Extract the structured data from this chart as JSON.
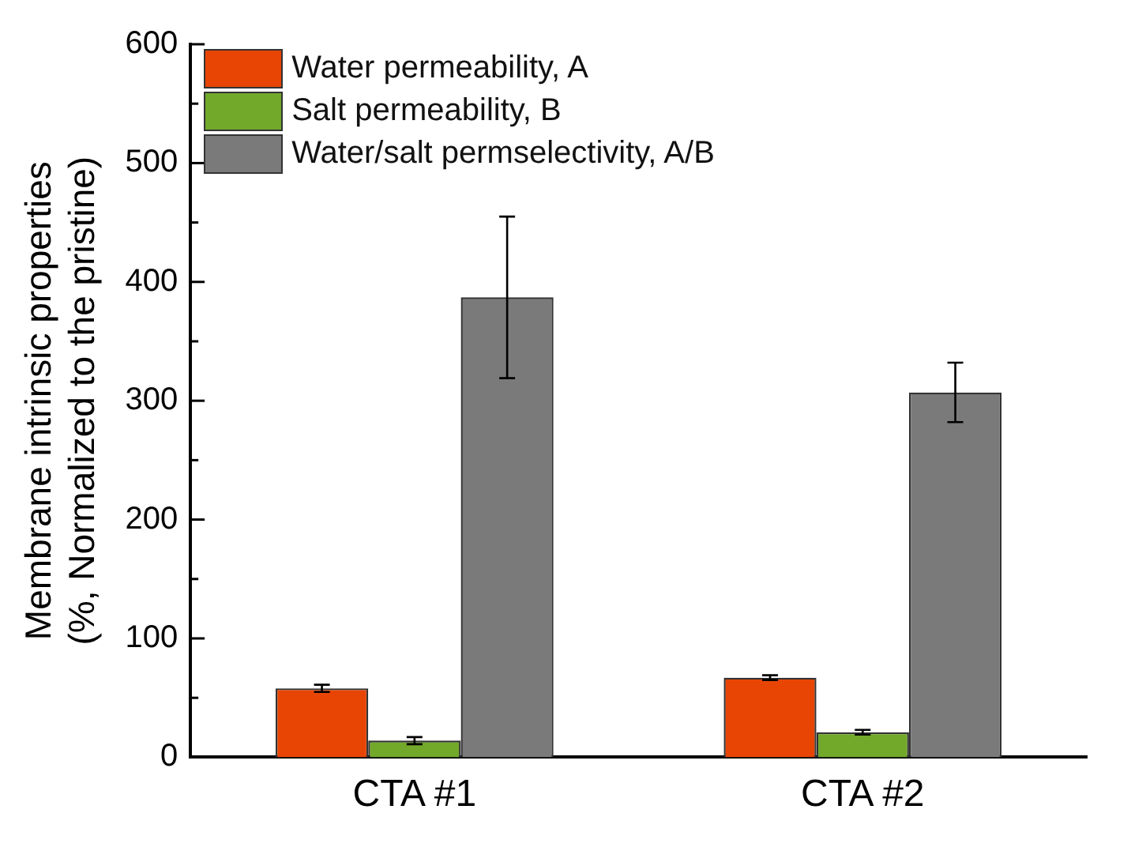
{
  "chart_data": {
    "type": "bar",
    "ylabel": "Membrane intrinsic properties\n(%, Normalized to the pristine)",
    "categories": [
      "CTA #1",
      "CTA #2"
    ],
    "series": [
      {
        "name": "Water permeability, A",
        "color": "#e84505",
        "values": [
          58,
          67
        ],
        "errors": [
          3,
          2
        ]
      },
      {
        "name": "Salt permeability, B",
        "color": "#72a92a",
        "values": [
          14,
          21
        ],
        "errors": [
          3,
          2
        ]
      },
      {
        "name": "Water/salt permselectivity, A/B",
        "color": "#7a7a7a",
        "values": [
          387,
          307
        ],
        "errors": [
          [
            319,
            455
          ],
          [
            282,
            332
          ]
        ]
      }
    ],
    "ylim": [
      0,
      600
    ],
    "yticks": [
      0,
      {
        "value": 50,
        "label": null
      },
      100,
      {
        "value": 150,
        "label": null
      },
      200,
      {
        "value": 250,
        "label": null
      },
      300,
      {
        "value": 350,
        "label": null
      },
      400,
      {
        "value": 450,
        "label": null
      },
      500,
      {
        "value": 550,
        "label": null
      },
      600
    ],
    "grid": false,
    "legend": "top left"
  }
}
